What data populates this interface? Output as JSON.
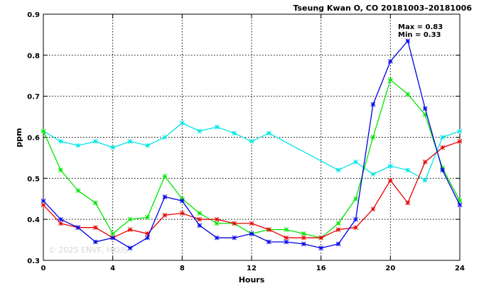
{
  "chart_data": {
    "type": "line",
    "title": "Tseung Kwan O, CO 20181003–20181006",
    "xlabel": "Hours",
    "ylabel": "ppm",
    "xlim": [
      0,
      24
    ],
    "ylim": [
      0.3,
      0.9
    ],
    "x_ticks": [
      "0",
      "4",
      "8",
      "12",
      "16",
      "20",
      "24"
    ],
    "y_ticks": [
      "0.3",
      "0.4",
      "0.5",
      "0.6",
      "0.7",
      "0.8",
      "0.9"
    ],
    "grid": true,
    "annotations": {
      "max": "Max = 0.83",
      "min": "Min = 0.33",
      "watermark": "© 2025  ENVF, HKUST"
    },
    "series": [
      {
        "color": "#00e5e5",
        "x": [
          0,
          1,
          2,
          3,
          4,
          5,
          6,
          7,
          8,
          9,
          10,
          11,
          12,
          13,
          17,
          18,
          19,
          20,
          21,
          22,
          23,
          24
        ],
        "values": [
          0.615,
          0.59,
          0.58,
          0.59,
          0.575,
          0.59,
          0.58,
          0.6,
          0.635,
          0.615,
          0.625,
          0.61,
          0.59,
          0.61,
          0.52,
          0.54,
          0.51,
          0.53,
          0.52,
          0.495,
          0.6,
          0.615
        ]
      },
      {
        "color": "#00e600",
        "x": [
          0,
          1,
          2,
          3,
          4,
          5,
          6,
          7,
          8,
          9,
          10,
          11,
          12,
          13,
          14,
          15,
          16,
          17,
          18,
          19,
          20,
          21,
          22,
          23,
          24
        ],
        "values": [
          0.615,
          0.52,
          0.47,
          0.44,
          0.365,
          0.4,
          0.405,
          0.505,
          0.45,
          0.415,
          0.39,
          0.39,
          0.365,
          0.375,
          0.375,
          0.365,
          0.355,
          0.39,
          0.45,
          0.6,
          0.74,
          0.705,
          0.655,
          0.525,
          0.445
        ]
      },
      {
        "color": "#e60000",
        "x": [
          0,
          1,
          2,
          3,
          4,
          5,
          6,
          7,
          8,
          9,
          10,
          11,
          12,
          13,
          14,
          15,
          16,
          17,
          18,
          19,
          20,
          21,
          22,
          23,
          24
        ],
        "values": [
          0.435,
          0.39,
          0.38,
          0.38,
          0.355,
          0.375,
          0.365,
          0.41,
          0.415,
          0.4,
          0.4,
          0.39,
          0.39,
          0.375,
          0.355,
          0.355,
          0.355,
          0.375,
          0.38,
          0.425,
          0.495,
          0.44,
          0.54,
          0.575,
          0.59
        ]
      },
      {
        "color": "#0000e6",
        "x": [
          0,
          1,
          2,
          3,
          4,
          5,
          6,
          7,
          8,
          9,
          10,
          11,
          12,
          13,
          14,
          15,
          16,
          17,
          18,
          19,
          20,
          21,
          22,
          23,
          24
        ],
        "values": [
          0.445,
          0.4,
          0.38,
          0.345,
          0.355,
          0.33,
          0.355,
          0.455,
          0.445,
          0.385,
          0.355,
          0.355,
          0.365,
          0.345,
          0.345,
          0.34,
          0.33,
          0.34,
          0.4,
          0.68,
          0.785,
          0.835,
          0.67,
          0.52,
          0.435
        ]
      }
    ]
  }
}
